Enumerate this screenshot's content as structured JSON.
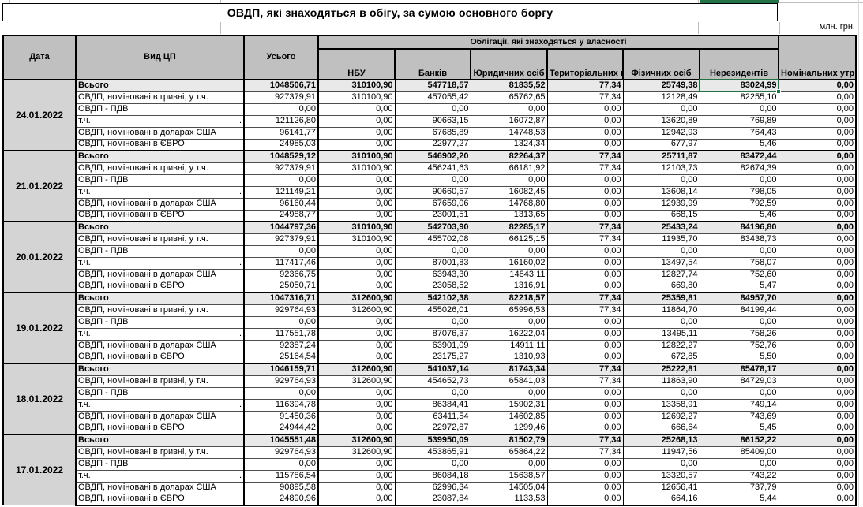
{
  "title": "ОВДП, які знаходяться в обігу, за сумою основного боргу",
  "units_label": "млн. грн.",
  "colors": {
    "selection_green": "#217346",
    "header_bg": "#c0c0c0",
    "date_cell_bg": "#d4d4d4",
    "total_row_bg": "#e9e9e9"
  },
  "table": {
    "group_header": "Облігації, які знаходяться у власності",
    "fixed_columns": [
      "Дата",
      "Вид ЦП",
      "Усього"
    ],
    "owner_columns": [
      "НБУ",
      "Банків",
      "Юридичних осіб",
      "Територіальних громад",
      "Фізичних осіб",
      "Нерезидентів"
    ],
    "last_column": "Номінальних утримувачив",
    "blocks": [
      {
        "date": "24.01.2022",
        "rows": [
          {
            "label": "Всього",
            "bold": true,
            "values": [
              "1048506,71",
              "310100,90",
              "547718,57",
              "81835,52",
              "77,34",
              "25749,38",
              "83024,99",
              "0,00"
            ]
          },
          {
            "label": "ОВДП, номіновані в гривні, у т.ч.",
            "values": [
              "927379,91",
              "310100,90",
              "457055,42",
              "65762,65",
              "77,34",
              "12128,49",
              "82255,10",
              "0,00"
            ]
          },
          {
            "label": "ОВДП - ПДВ",
            "values": [
              "0,00",
              "0,00",
              "0,00",
              "0,00",
              "0,00",
              "0,00",
              "0,00",
              "0,00"
            ]
          },
          {
            "label": "т.ч.",
            "dot": true,
            "values": [
              "121126,80",
              "0,00",
              "90663,15",
              "16072,87",
              "0,00",
              "13620,89",
              "769,89",
              "0,00"
            ]
          },
          {
            "label": "ОВДП, номіновані в доларах США",
            "values": [
              "96141,77",
              "0,00",
              "67685,89",
              "14748,53",
              "0,00",
              "12942,93",
              "764,43",
              "0,00"
            ]
          },
          {
            "label": "ОВДП, номіновані в ЄВРО",
            "values": [
              "24985,03",
              "0,00",
              "22977,27",
              "1324,34",
              "0,00",
              "677,97",
              "5,46",
              "0,00"
            ]
          }
        ]
      },
      {
        "date": "21.01.2022",
        "rows": [
          {
            "label": "Всього",
            "bold": true,
            "values": [
              "1048529,12",
              "310100,90",
              "546902,20",
              "82264,37",
              "77,34",
              "25711,87",
              "83472,44",
              "0,00"
            ]
          },
          {
            "label": "ОВДП, номіновані в гривні, у т.ч.",
            "values": [
              "927379,91",
              "310100,90",
              "456241,63",
              "66181,92",
              "77,34",
              "12103,73",
              "82674,39",
              "0,00"
            ]
          },
          {
            "label": "ОВДП - ПДВ",
            "values": [
              "0,00",
              "0,00",
              "0,00",
              "0,00",
              "0,00",
              "0,00",
              "0,00",
              "0,00"
            ]
          },
          {
            "label": "т.ч.",
            "dot": true,
            "values": [
              "121149,21",
              "0,00",
              "90660,57",
              "16082,45",
              "0,00",
              "13608,14",
              "798,05",
              "0,00"
            ]
          },
          {
            "label": "ОВДП, номіновані в доларах США",
            "values": [
              "96160,44",
              "0,00",
              "67659,06",
              "14768,80",
              "0,00",
              "12939,99",
              "792,59",
              "0,00"
            ]
          },
          {
            "label": "ОВДП, номіновані в ЄВРО",
            "values": [
              "24988,77",
              "0,00",
              "23001,51",
              "1313,65",
              "0,00",
              "668,15",
              "5,46",
              "0,00"
            ]
          }
        ]
      },
      {
        "date": "20.01.2022",
        "rows": [
          {
            "label": "Всього",
            "bold": true,
            "values": [
              "1044797,36",
              "310100,90",
              "542703,90",
              "82285,17",
              "77,34",
              "25433,24",
              "84196,80",
              "0,00"
            ]
          },
          {
            "label": "ОВДП, номіновані в гривні, у т.ч.",
            "values": [
              "927379,91",
              "310100,90",
              "455702,08",
              "66125,15",
              "77,34",
              "11935,70",
              "83438,73",
              "0,00"
            ]
          },
          {
            "label": "ОВДП - ПДВ",
            "values": [
              "0,00",
              "0,00",
              "0,00",
              "0,00",
              "0,00",
              "0,00",
              "0,00",
              "0,00"
            ]
          },
          {
            "label": "т.ч.",
            "dot": true,
            "values": [
              "117417,46",
              "0,00",
              "87001,83",
              "16160,02",
              "0,00",
              "13497,54",
              "758,07",
              "0,00"
            ]
          },
          {
            "label": "ОВДП, номіновані в доларах США",
            "values": [
              "92366,75",
              "0,00",
              "63943,30",
              "14843,11",
              "0,00",
              "12827,74",
              "752,60",
              "0,00"
            ]
          },
          {
            "label": "ОВДП, номіновані в ЄВРО",
            "values": [
              "25050,71",
              "0,00",
              "23058,52",
              "1316,91",
              "0,00",
              "669,80",
              "5,47",
              "0,00"
            ]
          }
        ]
      },
      {
        "date": "19.01.2022",
        "rows": [
          {
            "label": "Всього",
            "bold": true,
            "values": [
              "1047316,71",
              "312600,90",
              "542102,38",
              "82218,57",
              "77,34",
              "25359,81",
              "84957,70",
              "0,00"
            ]
          },
          {
            "label": "ОВДП, номіновані в гривні, у т.ч.",
            "values": [
              "929764,93",
              "312600,90",
              "455026,01",
              "65996,53",
              "77,34",
              "11864,70",
              "84199,44",
              "0,00"
            ]
          },
          {
            "label": "ОВДП - ПДВ",
            "values": [
              "0,00",
              "0,00",
              "0,00",
              "0,00",
              "0,00",
              "0,00",
              "0,00",
              "0,00"
            ]
          },
          {
            "label": "т.ч.",
            "dot": true,
            "values": [
              "117551,78",
              "0,00",
              "87076,37",
              "16222,04",
              "0,00",
              "13495,11",
              "758,26",
              "0,00"
            ]
          },
          {
            "label": "ОВДП, номіновані в доларах США",
            "values": [
              "92387,24",
              "0,00",
              "63901,09",
              "14911,11",
              "0,00",
              "12822,27",
              "752,76",
              "0,00"
            ]
          },
          {
            "label": "ОВДП, номіновані в ЄВРО",
            "values": [
              "25164,54",
              "0,00",
              "23175,27",
              "1310,93",
              "0,00",
              "672,85",
              "5,50",
              "0,00"
            ]
          }
        ]
      },
      {
        "date": "18.01.2022",
        "rows": [
          {
            "label": "Всього",
            "bold": true,
            "values": [
              "1046159,71",
              "312600,90",
              "541037,14",
              "81743,34",
              "77,34",
              "25222,81",
              "85478,17",
              "0,00"
            ]
          },
          {
            "label": "ОВДП, номіновані в гривні, у т.ч.",
            "values": [
              "929764,93",
              "312600,90",
              "454652,73",
              "65841,03",
              "77,34",
              "11863,90",
              "84729,03",
              "0,00"
            ]
          },
          {
            "label": "ОВДП - ПДВ",
            "values": [
              "0,00",
              "0,00",
              "0,00",
              "0,00",
              "0,00",
              "0,00",
              "0,00",
              "0,00"
            ]
          },
          {
            "label": "т.ч.",
            "dot": true,
            "values": [
              "116394,78",
              "0,00",
              "86384,41",
              "15902,31",
              "0,00",
              "13358,91",
              "749,14",
              "0,00"
            ]
          },
          {
            "label": "ОВДП, номіновані в доларах США",
            "values": [
              "91450,36",
              "0,00",
              "63411,54",
              "14602,85",
              "0,00",
              "12692,27",
              "743,69",
              "0,00"
            ]
          },
          {
            "label": "ОВДП, номіновані в ЄВРО",
            "values": [
              "24944,42",
              "0,00",
              "22972,87",
              "1299,46",
              "0,00",
              "666,64",
              "5,45",
              "0,00"
            ]
          }
        ]
      },
      {
        "date": "17.01.2022",
        "rows": [
          {
            "label": "Всього",
            "bold": true,
            "values": [
              "1045551,48",
              "312600,90",
              "539950,09",
              "81502,79",
              "77,34",
              "25268,13",
              "86152,22",
              "0,00"
            ]
          },
          {
            "label": "ОВДП, номіновані в гривні, у т.ч.",
            "values": [
              "929764,93",
              "312600,90",
              "453865,91",
              "65864,22",
              "77,34",
              "11947,56",
              "85409,00",
              "0,00"
            ]
          },
          {
            "label": "ОВДП - ПДВ",
            "values": [
              "0,00",
              "0,00",
              "0,00",
              "0,00",
              "0,00",
              "0,00",
              "0,00",
              "0,00"
            ]
          },
          {
            "label": "т.ч.",
            "dot": true,
            "values": [
              "115786,54",
              "0,00",
              "86084,18",
              "15638,57",
              "0,00",
              "13320,57",
              "743,22",
              "0,00"
            ]
          },
          {
            "label": "ОВДП, номіновані в доларах США",
            "values": [
              "90895,58",
              "0,00",
              "62996,34",
              "14505,04",
              "0,00",
              "12656,41",
              "737,79",
              "0,00"
            ]
          },
          {
            "label": "ОВДП, номіновані в ЄВРО",
            "values": [
              "24890,96",
              "0,00",
              "23087,84",
              "1133,53",
              "0,00",
              "664,16",
              "5,44",
              "0,00"
            ]
          }
        ]
      }
    ]
  },
  "selection": {
    "block": 0,
    "row": 0,
    "value_col": 6,
    "value": "83024,99"
  }
}
